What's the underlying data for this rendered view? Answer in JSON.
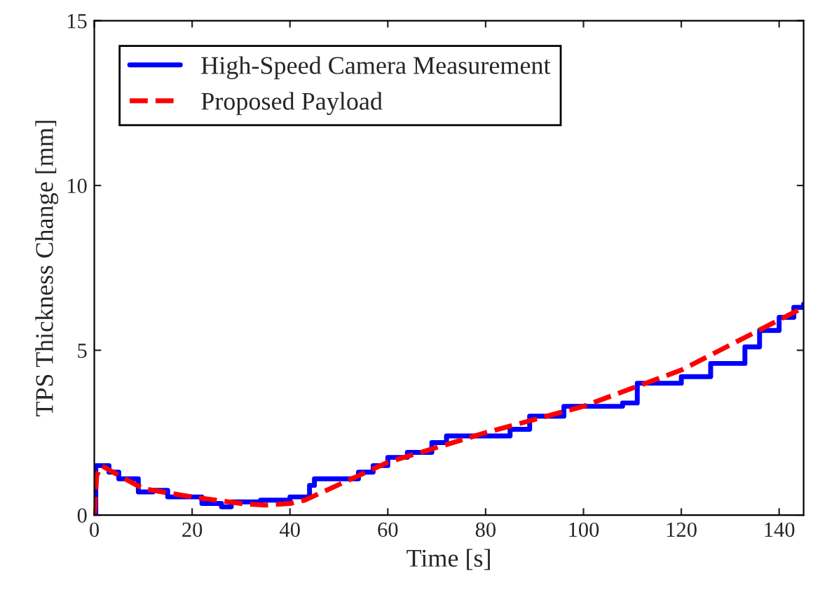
{
  "chart_data": {
    "type": "line",
    "xlabel": "Time [s]",
    "ylabel": "TPS Thickness Change [mm]",
    "xlim": [
      0,
      145
    ],
    "ylim": [
      0,
      15
    ],
    "xticks": [
      0,
      20,
      40,
      60,
      80,
      100,
      120,
      140
    ],
    "yticks": [
      0,
      5,
      10,
      15
    ],
    "grid": false,
    "legend": "top left",
    "series": [
      {
        "name": "High-Speed Camera Measurement",
        "type": "step",
        "color": "#0000ff",
        "line_style": "solid",
        "x": [
          0,
          0.3,
          3,
          5,
          9,
          12,
          15,
          22,
          26,
          28,
          34,
          40,
          44,
          45,
          54,
          57,
          60,
          64,
          69,
          72,
          85,
          89,
          92,
          96,
          108,
          111,
          120,
          126,
          133,
          136,
          140,
          143,
          145
        ],
        "values": [
          0,
          1.5,
          1.3,
          1.1,
          0.7,
          0.75,
          0.55,
          0.35,
          0.25,
          0.4,
          0.45,
          0.55,
          0.9,
          1.1,
          1.3,
          1.5,
          1.75,
          1.9,
          2.2,
          2.4,
          2.6,
          3.0,
          3.0,
          3.3,
          3.4,
          4.0,
          4.2,
          4.6,
          5.1,
          5.6,
          6.0,
          6.3,
          6.4
        ]
      },
      {
        "name": "Proposed Payload",
        "color": "#ff0000",
        "line_style": "dashed",
        "x": [
          0,
          0.5,
          1.5,
          5,
          10,
          20,
          30,
          35,
          40,
          43,
          60,
          80,
          100,
          120,
          145
        ],
        "values": [
          0,
          1.2,
          1.5,
          1.2,
          0.8,
          0.55,
          0.35,
          0.3,
          0.35,
          0.45,
          1.6,
          2.5,
          3.3,
          4.4,
          6.3
        ]
      }
    ]
  }
}
